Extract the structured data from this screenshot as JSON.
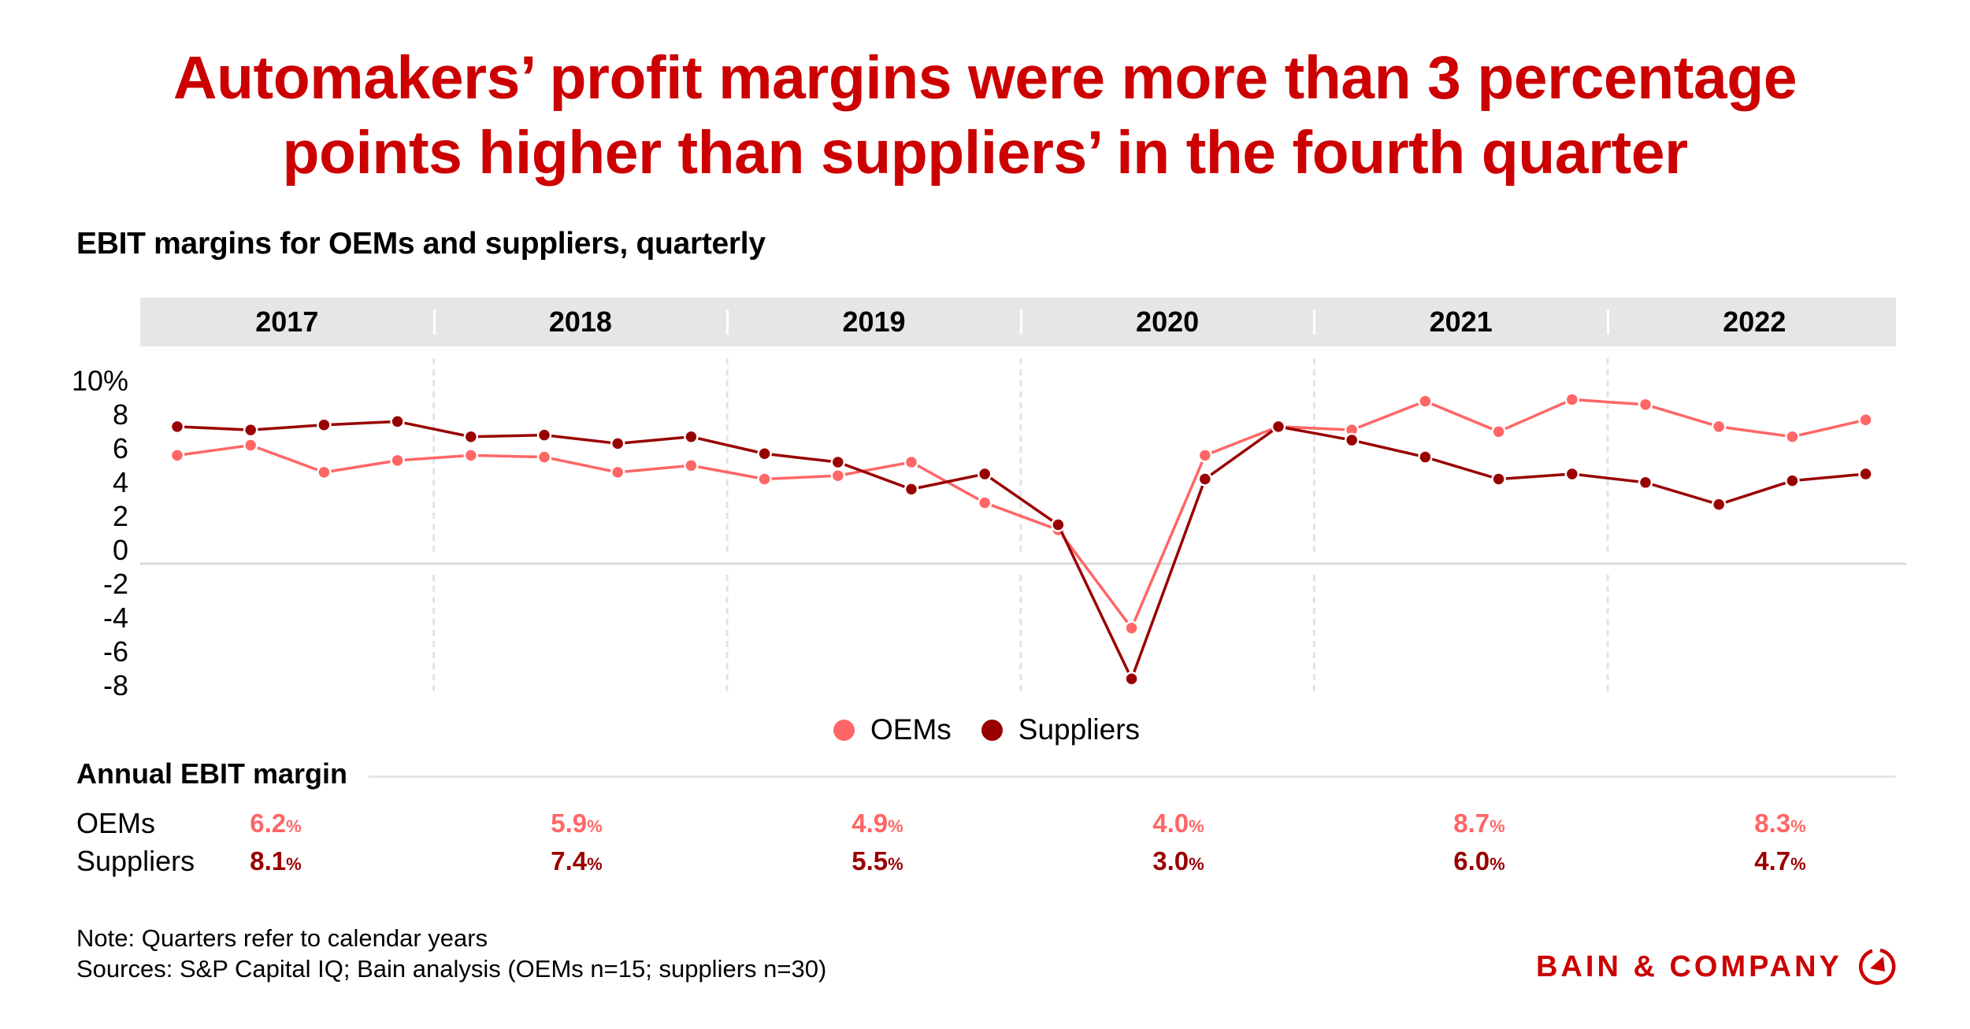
{
  "title": {
    "line1": "Automakers’ profit margins were more than 3 percentage",
    "line2": "points higher than suppliers’ in the fourth quarter"
  },
  "subtitle": "EBIT margins for OEMs and suppliers, quarterly",
  "colors": {
    "title": "#cc0000",
    "oems": "#ff6666",
    "suppliers": "#990000",
    "band": "#e6e6e6",
    "brand": "#cc0000"
  },
  "legend": {
    "oems": "OEMs",
    "suppliers": "Suppliers"
  },
  "chart_data": {
    "type": "line",
    "title": "EBIT margins for OEMs and suppliers, quarterly",
    "xlabel": "",
    "ylabel": "",
    "year_groups": [
      "2017",
      "2018",
      "2019",
      "2020",
      "2021",
      "2022"
    ],
    "x": [
      "Q1 2017",
      "Q2 2017",
      "Q3 2017",
      "Q4 2017",
      "Q1 2018",
      "Q2 2018",
      "Q3 2018",
      "Q4 2018",
      "Q1 2019",
      "Q2 2019",
      "Q3 2019",
      "Q4 2019",
      "Q1 2020",
      "Q2 2020",
      "Q3 2020",
      "Q4 2020",
      "Q1 2021",
      "Q2 2021",
      "Q3 2021",
      "Q4 2021",
      "Q1 2022",
      "Q2 2022",
      "Q3 2022",
      "Q4 2022"
    ],
    "series": [
      {
        "name": "OEMs",
        "color": "#ff6666",
        "values": [
          6.4,
          7.0,
          5.4,
          6.1,
          6.4,
          6.3,
          5.4,
          5.8,
          5.0,
          5.2,
          6.0,
          3.6,
          2.0,
          -3.8,
          6.4,
          8.1,
          7.9,
          9.6,
          7.8,
          9.7,
          9.4,
          8.1,
          7.5,
          8.5
        ]
      },
      {
        "name": "Suppliers",
        "color": "#990000",
        "values": [
          8.1,
          7.9,
          8.2,
          8.4,
          7.5,
          7.6,
          7.1,
          7.5,
          6.5,
          6.0,
          4.4,
          5.3,
          2.3,
          -6.8,
          5.0,
          8.1,
          7.3,
          6.3,
          5.0,
          5.3,
          4.8,
          3.5,
          4.9,
          5.3
        ]
      }
    ],
    "yticks": [
      10,
      8,
      6,
      4,
      2,
      0,
      -2,
      -4,
      -6,
      -8
    ],
    "ytick_labels": [
      "10%",
      "8",
      "6",
      "4",
      "2",
      "0",
      "-2",
      "-4",
      "-6",
      "-8"
    ],
    "ylim": [
      -8,
      10
    ],
    "grid": false,
    "legend_position": "bottom-center"
  },
  "annual": {
    "title": "Annual EBIT margin",
    "rows": [
      {
        "label": "OEMs",
        "values": [
          "6.2",
          "5.9",
          "4.9",
          "4.0",
          "8.7",
          "8.3"
        ]
      },
      {
        "label": "Suppliers",
        "values": [
          "8.1",
          "7.4",
          "5.5",
          "3.0",
          "6.0",
          "4.7"
        ]
      }
    ],
    "unit": "%"
  },
  "footer": {
    "note": "Note: Quarters refer to calendar years",
    "sources": "Sources: S&P Capital IQ; Bain analysis (OEMs n=15; suppliers n=30)"
  },
  "brand": {
    "name": "BAIN & COMPANY",
    "icon": "bain-logo-icon"
  }
}
